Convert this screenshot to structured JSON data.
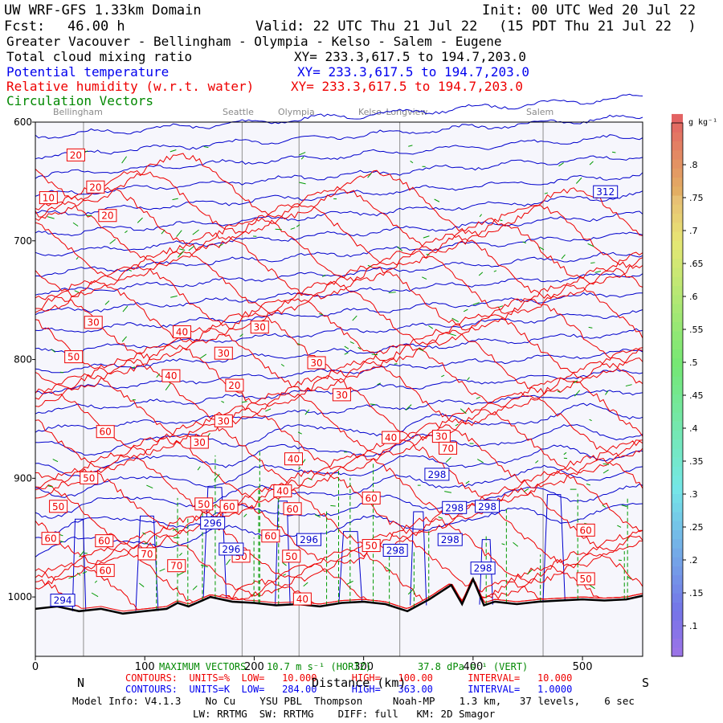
{
  "header": {
    "model": "UW WRF-GFS 1.33km Domain",
    "init": "Init: 00 UTC Wed 20 Jul 22",
    "fcst_label": "Fcst:",
    "fcst_value": "46.00 h",
    "valid": "Valid: 22 UTC Thu 21 Jul 22",
    "valid_local": "(15 PDT Thu 21 Jul 22  )",
    "region": "Greater Vacouver - Bellingham - Olympia - Kelso - Salem - Eugene",
    "field1": "Total cloud mixing ratio",
    "field2": "Potential temperature",
    "field3": "Relative humidity (w.r.t. water)",
    "field4": "Circulation Vectors",
    "xy_black": "XY= 233.3,617.5 to 194.7,203.0",
    "xy_blue": "XY= 233.3,617.5 to 194.7,203.0",
    "xy_red": "XY= 233.3,617.5 to 194.7,203.0"
  },
  "colors": {
    "rh": "#ee0000",
    "theta": "#0000cc",
    "vectors": "#009900",
    "terrain": "#000000",
    "plot_bg": "#f6f6fc",
    "city_line": "#a0a0a0"
  },
  "chart_data": {
    "type": "line",
    "xlabel": "Distance (km)",
    "xlim": [
      0,
      555
    ],
    "ylim": [
      1050,
      600
    ],
    "x_ticks": [
      0,
      100,
      200,
      300,
      400,
      500
    ],
    "x_tick_labels": [
      "0",
      "100",
      "200",
      "300",
      "400",
      "500"
    ],
    "y_ticks": [
      600,
      700,
      800,
      900,
      1000
    ],
    "y_tick_labels": [
      "600",
      "700",
      "800",
      "900",
      "1000"
    ],
    "x_end_labels": {
      "left": "N",
      "right": "S"
    },
    "cities": [
      {
        "name": "Bellingham",
        "x": 44
      },
      {
        "name": "Seattle",
        "x": 189
      },
      {
        "name": "Olympia",
        "x": 241
      },
      {
        "name": "Kelso–Longview",
        "x": 333
      },
      {
        "name": "Salem",
        "x": 464
      }
    ],
    "terrain_profile": {
      "x": [
        0,
        20,
        40,
        60,
        80,
        100,
        120,
        130,
        140,
        160,
        180,
        200,
        220,
        240,
        260,
        280,
        300,
        320,
        340,
        360,
        380,
        390,
        400,
        410,
        420,
        440,
        460,
        480,
        500,
        520,
        540,
        555
      ],
      "p": [
        1010,
        1008,
        1012,
        1010,
        1014,
        1012,
        1010,
        1005,
        1008,
        1000,
        1004,
        1005,
        1007,
        1006,
        1008,
        1005,
        1004,
        1006,
        1012,
        1002,
        990,
        1006,
        985,
        1007,
        1004,
        1006,
        1004,
        1003,
        1002,
        1003,
        1002,
        999
      ]
    },
    "theta_labels": [
      {
        "text": "312",
        "x": 521,
        "p": 659
      },
      {
        "text": "298",
        "x": 367,
        "p": 897
      },
      {
        "text": "298",
        "x": 383,
        "p": 925
      },
      {
        "text": "298",
        "x": 413,
        "p": 924
      },
      {
        "text": "298",
        "x": 379,
        "p": 952
      },
      {
        "text": "298",
        "x": 329,
        "p": 961
      },
      {
        "text": "298",
        "x": 409,
        "p": 976
      },
      {
        "text": "296",
        "x": 162,
        "p": 938
      },
      {
        "text": "296",
        "x": 250,
        "p": 952
      },
      {
        "text": "296",
        "x": 179,
        "p": 960
      },
      {
        "text": "294",
        "x": 25,
        "p": 1003
      }
    ],
    "rh_labels": [
      {
        "text": "10",
        "x": 12,
        "p": 664
      },
      {
        "text": "20",
        "x": 37,
        "p": 628
      },
      {
        "text": "20",
        "x": 55,
        "p": 655
      },
      {
        "text": "20",
        "x": 66,
        "p": 679
      },
      {
        "text": "30",
        "x": 53,
        "p": 769
      },
      {
        "text": "40",
        "x": 134,
        "p": 777
      },
      {
        "text": "30",
        "x": 205,
        "p": 773
      },
      {
        "text": "30",
        "x": 172,
        "p": 795
      },
      {
        "text": "30",
        "x": 257,
        "p": 803
      },
      {
        "text": "40",
        "x": 124,
        "p": 814
      },
      {
        "text": "20",
        "x": 182,
        "p": 822
      },
      {
        "text": "30",
        "x": 280,
        "p": 830
      },
      {
        "text": "30",
        "x": 172,
        "p": 852
      },
      {
        "text": "30",
        "x": 150,
        "p": 870
      },
      {
        "text": "50",
        "x": 35,
        "p": 798
      },
      {
        "text": "60",
        "x": 64,
        "p": 861
      },
      {
        "text": "50",
        "x": 49,
        "p": 900
      },
      {
        "text": "50",
        "x": 21,
        "p": 924
      },
      {
        "text": "60",
        "x": 14,
        "p": 951
      },
      {
        "text": "60",
        "x": 63,
        "p": 953
      },
      {
        "text": "60",
        "x": 64,
        "p": 978
      },
      {
        "text": "70",
        "x": 102,
        "p": 964
      },
      {
        "text": "70",
        "x": 129,
        "p": 974
      },
      {
        "text": "60",
        "x": 177,
        "p": 924
      },
      {
        "text": "50",
        "x": 154,
        "p": 922
      },
      {
        "text": "50",
        "x": 188,
        "p": 966
      },
      {
        "text": "40",
        "x": 226,
        "p": 911
      },
      {
        "text": "40",
        "x": 236,
        "p": 884
      },
      {
        "text": "60",
        "x": 235,
        "p": 926
      },
      {
        "text": "60",
        "x": 215,
        "p": 949
      },
      {
        "text": "50",
        "x": 234,
        "p": 966
      },
      {
        "text": "40",
        "x": 244,
        "p": 1002
      },
      {
        "text": "40",
        "x": 325,
        "p": 866
      },
      {
        "text": "60",
        "x": 307,
        "p": 917
      },
      {
        "text": "50",
        "x": 307,
        "p": 957
      },
      {
        "text": "30",
        "x": 371,
        "p": 865
      },
      {
        "text": "70",
        "x": 377,
        "p": 875
      },
      {
        "text": "60",
        "x": 503,
        "p": 944
      },
      {
        "text": "50",
        "x": 503,
        "p": 985
      }
    ]
  },
  "colorbar": {
    "unit": "g kg⁻¹",
    "ticks": [
      ".8",
      ".75",
      ".7",
      ".65",
      ".6",
      ".55",
      ".5",
      ".45",
      ".4",
      ".35",
      ".3",
      ".25",
      ".2",
      ".15",
      ".1"
    ]
  },
  "footer": {
    "max_vectors": "MAXIMUM VECTORS",
    "max_horiz": "10.7 m s⁻¹ (HORIZ)",
    "max_vert": "37.8 dPa s⁻¹ (VERT)",
    "rh_line": "CONTOURS:  UNITS=%  LOW=   10.000      HIGH=   100.00      INTERVAL=   10.000",
    "theta_line": "CONTOURS:  UNITS=K  LOW=   284.00      HIGH=   363.00      INTERVAL=   1.0000",
    "model_info": "Model Info: V4.1.3    No Cu    YSU PBL  Thompson     Noah-MP    1.3 km,   37 levels,    6 sec",
    "model_info2": "LW: RRTMG  SW: RRTMG    DIFF: full   KM: 2D Smagor"
  }
}
